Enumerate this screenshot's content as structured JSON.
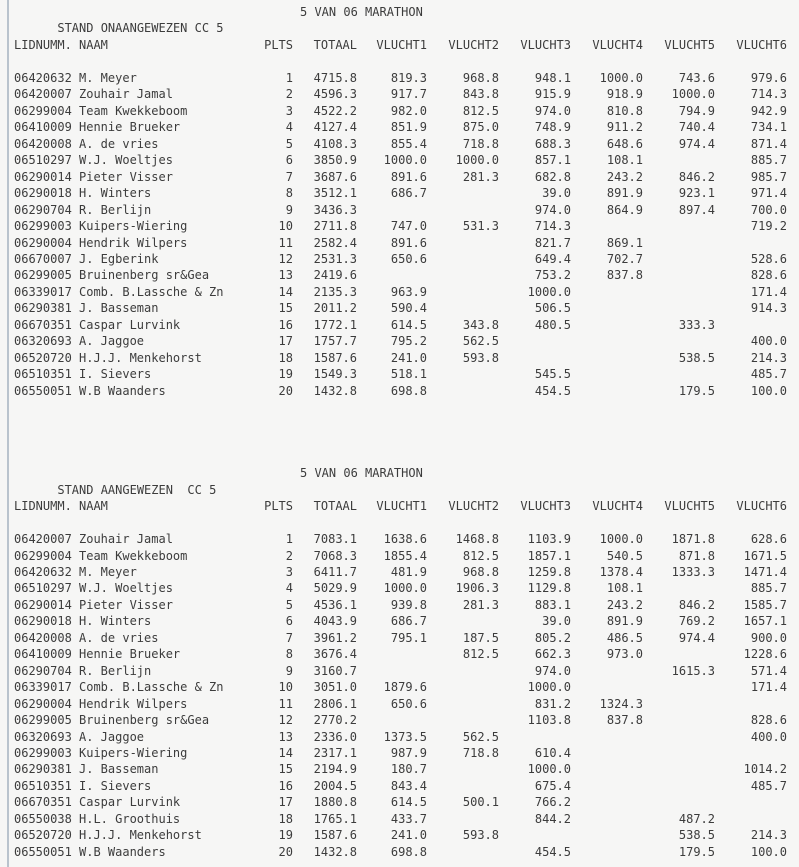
{
  "page": {
    "background_color": "#f6f6f5",
    "rule_color": "#b9c3cd",
    "text_color": "#3c3c3c"
  },
  "tables": [
    {
      "title": "STAND ONAANGEWEZEN CC 5",
      "subtitle": "5 VAN 06 MARATHON",
      "columns": [
        {
          "id": "lidnummer",
          "label": "LIDNUMM."
        },
        {
          "id": "naam",
          "label": "NAAM"
        },
        {
          "id": "plts",
          "label": "PLTS"
        },
        {
          "id": "totaal",
          "label": "TOTAAL"
        },
        {
          "id": "vlucht1",
          "label": "VLUCHT1"
        },
        {
          "id": "vlucht2",
          "label": "VLUCHT2"
        },
        {
          "id": "vlucht3",
          "label": "VLUCHT3"
        },
        {
          "id": "vlucht4",
          "label": "VLUCHT4"
        },
        {
          "id": "vlucht5",
          "label": "VLUCHT5"
        },
        {
          "id": "vlucht6",
          "label": "VLUCHT6"
        }
      ],
      "rows": [
        [
          "06420632",
          "M. Meyer",
          "1",
          "4715.8",
          "819.3",
          "968.8",
          "948.1",
          "1000.0",
          "743.6",
          "979.6"
        ],
        [
          "06420007",
          "Zouhair Jamal",
          "2",
          "4596.3",
          "917.7",
          "843.8",
          "915.9",
          "918.9",
          "1000.0",
          "714.3"
        ],
        [
          "06299004",
          "Team Kwekkeboom",
          "3",
          "4522.2",
          "982.0",
          "812.5",
          "974.0",
          "810.8",
          "794.9",
          "942.9"
        ],
        [
          "06410009",
          "Hennie Brueker",
          "4",
          "4127.4",
          "851.9",
          "875.0",
          "748.9",
          "911.2",
          "740.4",
          "734.1"
        ],
        [
          "06420008",
          "A. de vries",
          "5",
          "4108.3",
          "855.4",
          "718.8",
          "688.3",
          "648.6",
          "974.4",
          "871.4"
        ],
        [
          "06510297",
          "W.J. Woeltjes",
          "6",
          "3850.9",
          "1000.0",
          "1000.0",
          "857.1",
          "108.1",
          "",
          "885.7"
        ],
        [
          "06290014",
          "Pieter Visser",
          "7",
          "3687.6",
          "891.6",
          "281.3",
          "682.8",
          "243.2",
          "846.2",
          "985.7"
        ],
        [
          "06290018",
          "H. Winters",
          "8",
          "3512.1",
          "686.7",
          "",
          "39.0",
          "891.9",
          "923.1",
          "971.4"
        ],
        [
          "06290704",
          "R. Berlijn",
          "9",
          "3436.3",
          "",
          "",
          "974.0",
          "864.9",
          "897.4",
          "700.0"
        ],
        [
          "06299003",
          "Kuipers-Wiering",
          "10",
          "2711.8",
          "747.0",
          "531.3",
          "714.3",
          "",
          "",
          "719.2"
        ],
        [
          "06290004",
          "Hendrik Wilpers",
          "11",
          "2582.4",
          "891.6",
          "",
          "821.7",
          "869.1",
          "",
          ""
        ],
        [
          "06670007",
          "J. Egberink",
          "12",
          "2531.3",
          "650.6",
          "",
          "649.4",
          "702.7",
          "",
          "528.6"
        ],
        [
          "06299005",
          "Bruinenberg sr&Gea",
          "13",
          "2419.6",
          "",
          "",
          "753.2",
          "837.8",
          "",
          "828.6"
        ],
        [
          "06339017",
          "Comb. B.Lassche & Zn",
          "14",
          "2135.3",
          "963.9",
          "",
          "1000.0",
          "",
          "",
          "171.4"
        ],
        [
          "06290381",
          "J. Basseman",
          "15",
          "2011.2",
          "590.4",
          "",
          "506.5",
          "",
          "",
          "914.3"
        ],
        [
          "06670351",
          "Caspar Lurvink",
          "16",
          "1772.1",
          "614.5",
          "343.8",
          "480.5",
          "",
          "333.3",
          ""
        ],
        [
          "06320693",
          "A. Jaggoe",
          "17",
          "1757.7",
          "795.2",
          "562.5",
          "",
          "",
          "",
          "400.0"
        ],
        [
          "06520720",
          "H.J.J. Menkehorst",
          "18",
          "1587.6",
          "241.0",
          "593.8",
          "",
          "",
          "538.5",
          "214.3"
        ],
        [
          "06510351",
          "I. Sievers",
          "19",
          "1549.3",
          "518.1",
          "",
          "545.5",
          "",
          "",
          "485.7"
        ],
        [
          "06550051",
          "W.B Waanders",
          "20",
          "1432.8",
          "698.8",
          "",
          "454.5",
          "",
          "179.5",
          "100.0"
        ]
      ]
    },
    {
      "title": "STAND AANGEWEZEN  CC 5",
      "subtitle": "5 VAN 06 MARATHON",
      "columns": [
        {
          "id": "lidnummer",
          "label": "LIDNUMM."
        },
        {
          "id": "naam",
          "label": "NAAM"
        },
        {
          "id": "plts",
          "label": "PLTS"
        },
        {
          "id": "totaal",
          "label": "TOTAAL"
        },
        {
          "id": "vlucht1",
          "label": "VLUCHT1"
        },
        {
          "id": "vlucht2",
          "label": "VLUCHT2"
        },
        {
          "id": "vlucht3",
          "label": "VLUCHT3"
        },
        {
          "id": "vlucht4",
          "label": "VLUCHT4"
        },
        {
          "id": "vlucht5",
          "label": "VLUCHT5"
        },
        {
          "id": "vlucht6",
          "label": "VLUCHT6"
        }
      ],
      "rows": [
        [
          "06420007",
          "Zouhair Jamal",
          "1",
          "7083.1",
          "1638.6",
          "1468.8",
          "1103.9",
          "1000.0",
          "1871.8",
          "628.6"
        ],
        [
          "06299004",
          "Team Kwekkeboom",
          "2",
          "7068.3",
          "1855.4",
          "812.5",
          "1857.1",
          "540.5",
          "871.8",
          "1671.5"
        ],
        [
          "06420632",
          "M. Meyer",
          "3",
          "6411.7",
          "481.9",
          "968.8",
          "1259.8",
          "1378.4",
          "1333.3",
          "1471.4"
        ],
        [
          "06510297",
          "W.J. Woeltjes",
          "4",
          "5029.9",
          "1000.0",
          "1906.3",
          "1129.8",
          "108.1",
          "",
          "885.7"
        ],
        [
          "06290014",
          "Pieter Visser",
          "5",
          "4536.1",
          "939.8",
          "281.3",
          "883.1",
          "243.2",
          "846.2",
          "1585.7"
        ],
        [
          "06290018",
          "H. Winters",
          "6",
          "4043.9",
          "686.7",
          "",
          "39.0",
          "891.9",
          "769.2",
          "1657.1"
        ],
        [
          "06420008",
          "A. de vries",
          "7",
          "3961.2",
          "795.1",
          "187.5",
          "805.2",
          "486.5",
          "974.4",
          "900.0"
        ],
        [
          "06410009",
          "Hennie Brueker",
          "8",
          "3676.4",
          "",
          "812.5",
          "662.3",
          "973.0",
          "",
          "1228.6"
        ],
        [
          "06290704",
          "R. Berlijn",
          "9",
          "3160.7",
          "",
          "",
          "974.0",
          "",
          "1615.3",
          "571.4"
        ],
        [
          "06339017",
          "Comb. B.Lassche & Zn",
          "10",
          "3051.0",
          "1879.6",
          "",
          "1000.0",
          "",
          "",
          "171.4"
        ],
        [
          "06290004",
          "Hendrik Wilpers",
          "11",
          "2806.1",
          "650.6",
          "",
          "831.2",
          "1324.3",
          "",
          ""
        ],
        [
          "06299005",
          "Bruinenberg sr&Gea",
          "12",
          "2770.2",
          "",
          "",
          "1103.8",
          "837.8",
          "",
          "828.6"
        ],
        [
          "06320693",
          "A. Jaggoe",
          "13",
          "2336.0",
          "1373.5",
          "562.5",
          "",
          "",
          "",
          "400.0"
        ],
        [
          "06299003",
          "Kuipers-Wiering",
          "14",
          "2317.1",
          "987.9",
          "718.8",
          "610.4",
          "",
          "",
          ""
        ],
        [
          "06290381",
          "J. Basseman",
          "15",
          "2194.9",
          "180.7",
          "",
          "1000.0",
          "",
          "",
          "1014.2"
        ],
        [
          "06510351",
          "I. Sievers",
          "16",
          "2004.5",
          "843.4",
          "",
          "675.4",
          "",
          "",
          "485.7"
        ],
        [
          "06670351",
          "Caspar Lurvink",
          "17",
          "1880.8",
          "614.5",
          "500.1",
          "766.2",
          "",
          "",
          ""
        ],
        [
          "06550038",
          "H.L. Groothuis",
          "18",
          "1765.1",
          "433.7",
          "",
          "844.2",
          "",
          "487.2",
          ""
        ],
        [
          "06520720",
          "H.J.J. Menkehorst",
          "19",
          "1587.6",
          "241.0",
          "593.8",
          "",
          "",
          "538.5",
          "214.3"
        ],
        [
          "06550051",
          "W.B Waanders",
          "20",
          "1432.8",
          "698.8",
          "",
          "454.5",
          "",
          "179.5",
          "100.0"
        ]
      ]
    }
  ]
}
